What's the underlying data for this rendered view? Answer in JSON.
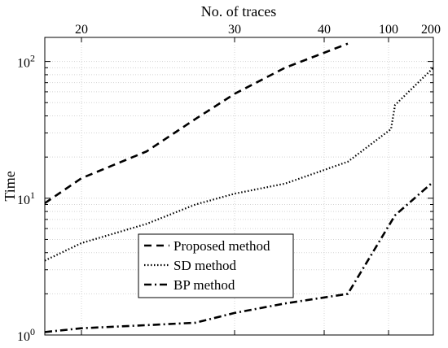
{
  "chart_data": {
    "type": "line",
    "xlabel": "No. of traces",
    "ylabel": "Time",
    "y_scale": "log",
    "ylim": [
      1,
      150
    ],
    "x_ticks": [
      "20",
      "30",
      "40",
      "100",
      "200"
    ],
    "y_ticks": [
      {
        "value": 1,
        "base": "10",
        "exp": "0"
      },
      {
        "value": 10,
        "base": "10",
        "exp": "1"
      },
      {
        "value": 100,
        "base": "10",
        "exp": "2"
      }
    ],
    "grid": true,
    "legend_position": "bottom-center",
    "x_positions": [
      "16",
      "20",
      "25",
      "30",
      "35",
      "40",
      "45",
      "100",
      "120",
      "200"
    ],
    "series": [
      {
        "name": "Proposed method",
        "style": "dashed",
        "points": [
          [
            "16",
            9.2
          ],
          [
            "20",
            14
          ],
          [
            "25",
            22
          ],
          [
            "30",
            38
          ],
          [
            "35",
            58
          ],
          [
            "40",
            90
          ],
          [
            "45",
            135
          ]
        ]
      },
      {
        "name": "SD method",
        "style": "dotted",
        "points": [
          [
            "16",
            3.5
          ],
          [
            "20",
            4.7
          ],
          [
            "25",
            6.5
          ],
          [
            "30",
            9.0
          ],
          [
            "35",
            10.8
          ],
          [
            "40",
            12.8
          ],
          [
            "45",
            18.5
          ],
          [
            "100",
            32
          ],
          [
            "120",
            48
          ],
          [
            "200",
            90
          ]
        ]
      },
      {
        "name": "BP method",
        "style": "dashdot",
        "points": [
          [
            "16",
            1.05
          ],
          [
            "20",
            1.12
          ],
          [
            "25",
            1.18
          ],
          [
            "30",
            1.23
          ],
          [
            "35",
            1.45
          ],
          [
            "40",
            1.7
          ],
          [
            "45",
            2.0
          ],
          [
            "120",
            7.5
          ],
          [
            "200",
            13.2
          ]
        ]
      }
    ],
    "colors": {
      "line": "#000000",
      "grid": "#d4d4d4",
      "frame": "#000000"
    }
  }
}
